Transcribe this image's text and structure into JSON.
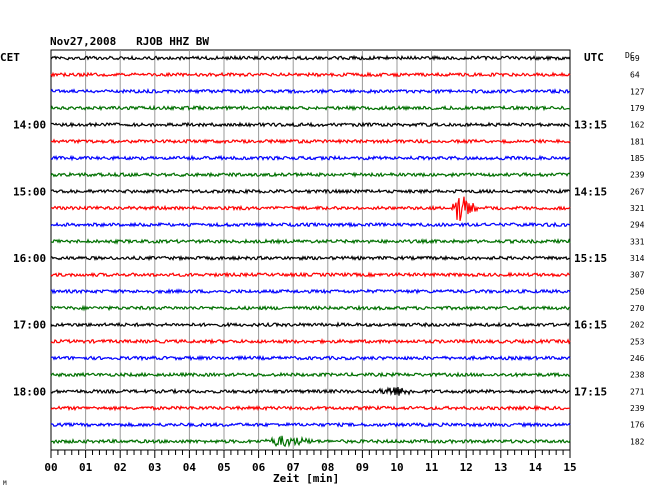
{
  "chart_data": {
    "type": "line",
    "title": "Nov27,2008   RJOB HHZ BW",
    "xlabel": "Zeit [min]",
    "left_timezone": "CET",
    "right_timezone": "UTC",
    "dc_label": "DC",
    "x_ticks": [
      "00",
      "01",
      "02",
      "03",
      "04",
      "05",
      "06",
      "07",
      "08",
      "09",
      "10",
      "11",
      "12",
      "13",
      "14",
      "15"
    ],
    "xlim": [
      0,
      15
    ],
    "left_hour_labels": [
      {
        "row": 4,
        "text": "14:00"
      },
      {
        "row": 8,
        "text": "15:00"
      },
      {
        "row": 12,
        "text": "16:00"
      },
      {
        "row": 16,
        "text": "17:00"
      },
      {
        "row": 20,
        "text": "18:00"
      }
    ],
    "right_hour_labels": [
      {
        "row": 4,
        "text": "13:15"
      },
      {
        "row": 8,
        "text": "14:15"
      },
      {
        "row": 12,
        "text": "15:15"
      },
      {
        "row": 16,
        "text": "16:15"
      },
      {
        "row": 20,
        "text": "17:15"
      }
    ],
    "dc_values": [
      "69",
      "64",
      "127",
      "179",
      "162",
      "181",
      "185",
      "239",
      "267",
      "321",
      "294",
      "331",
      "314",
      "307",
      "250",
      "270",
      "202",
      "253",
      "246",
      "238",
      "271",
      "239",
      "176",
      "182"
    ],
    "trace_colors": [
      "#000000",
      "#ff0000",
      "#0000ff",
      "#007000"
    ],
    "grid": true,
    "events": [
      {
        "row": 9,
        "minute_start": 11.55,
        "minute_end": 12.4,
        "amplitude": 18
      },
      {
        "row": 20,
        "minute_start": 9.3,
        "minute_end": 11.0,
        "amplitude": 6
      },
      {
        "row": 23,
        "minute_start": 6.0,
        "minute_end": 8.1,
        "amplitude": 6
      }
    ],
    "footnote": "M"
  }
}
